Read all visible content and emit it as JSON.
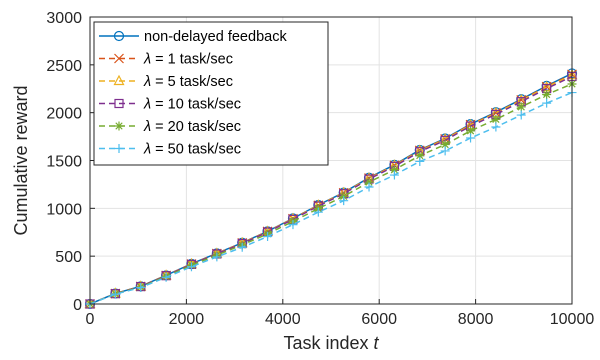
{
  "chart_data": {
    "type": "line",
    "xlabel": "Task index",
    "xlabel_var": "t",
    "ylabel": "Cumulative reward",
    "xlim": [
      0,
      10000
    ],
    "ylim": [
      0,
      3000
    ],
    "xticks": [
      "0",
      "2000",
      "4000",
      "6000",
      "8000",
      "10000"
    ],
    "yticks": [
      "0",
      "500",
      "1000",
      "1500",
      "2000",
      "2500",
      "3000"
    ],
    "grid": true,
    "legend_position": "top-left",
    "x": [
      0,
      526,
      1053,
      1579,
      2105,
      2632,
      3158,
      3684,
      4211,
      4737,
      5263,
      5789,
      6316,
      6842,
      7368,
      7895,
      8421,
      8947,
      9474,
      10000
    ],
    "series": [
      {
        "name": "non-delayed feedback",
        "color": "#0072BD",
        "marker": "circle",
        "dash": "solid",
        "values": [
          0,
          110,
          185,
          300,
          420,
          530,
          640,
          760,
          895,
          1035,
          1165,
          1320,
          1455,
          1610,
          1730,
          1880,
          2005,
          2140,
          2280,
          2410
        ]
      },
      {
        "name_prefix": "λ",
        "name": " = 1 task/sec",
        "color": "#D95319",
        "marker": "x",
        "dash": "dashed",
        "values": [
          0,
          109,
          184,
          299,
          418,
          528,
          638,
          758,
          892,
          1032,
          1162,
          1316,
          1450,
          1605,
          1725,
          1875,
          1998,
          2133,
          2272,
          2400
        ]
      },
      {
        "name_prefix": "λ",
        "name": " = 5 task/sec",
        "color": "#EDB120",
        "marker": "triangle",
        "dash": "dashed",
        "values": [
          0,
          109,
          183,
          298,
          416,
          526,
          636,
          756,
          890,
          1030,
          1160,
          1313,
          1447,
          1601,
          1721,
          1870,
          1994,
          2128,
          2266,
          2392
        ]
      },
      {
        "name_prefix": "λ",
        "name": " = 10 task/sec",
        "color": "#7E2F8E",
        "marker": "square",
        "dash": "dashed",
        "values": [
          0,
          108,
          182,
          296,
          414,
          523,
          632,
          752,
          885,
          1024,
          1153,
          1306,
          1439,
          1592,
          1711,
          1860,
          1982,
          2115,
          2252,
          2378
        ]
      },
      {
        "name_prefix": "λ",
        "name": " = 20 task/sec",
        "color": "#77AC30",
        "marker": "asterisk",
        "dash": "dashed",
        "values": [
          0,
          106,
          178,
          289,
          405,
          511,
          617,
          733,
          863,
          998,
          1125,
          1274,
          1403,
          1551,
          1667,
          1810,
          1930,
          2060,
          2190,
          2300
        ]
      },
      {
        "name_prefix": "λ",
        "name": " = 50 task/sec",
        "color": "#4DBEEE",
        "marker": "plus",
        "dash": "dashed",
        "values": [
          0,
          103,
          172,
          279,
          390,
          492,
          593,
          705,
          830,
          960,
          1080,
          1223,
          1348,
          1490,
          1600,
          1735,
          1850,
          1975,
          2100,
          2210
        ]
      }
    ]
  }
}
